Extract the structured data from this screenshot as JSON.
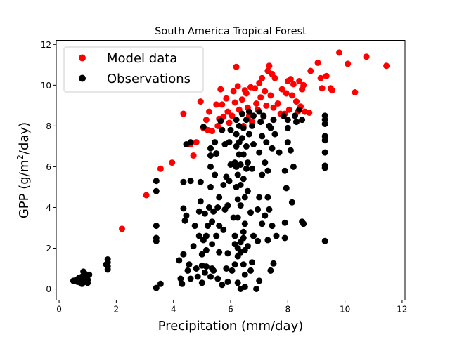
{
  "chart_data": {
    "type": "scatter",
    "title": "South America Tropical Forest",
    "xlabel": "Precipitation (mm/day)",
    "ylabel_main": "GPP (g/m",
    "ylabel_sup": "2",
    "ylabel_tail": "/day)",
    "xlim": [
      -0.1,
      12.1
    ],
    "ylim": [
      -0.55,
      12.2
    ],
    "xticks": [
      0,
      2,
      4,
      6,
      8,
      10,
      12
    ],
    "yticks": [
      0,
      2,
      4,
      6,
      8,
      10,
      12
    ],
    "legend_position": "top-left",
    "series": [
      {
        "name": "Model data",
        "color": "#ff0000",
        "points": [
          [
            2.2,
            2.95
          ],
          [
            3.05,
            4.6
          ],
          [
            3.55,
            5.9
          ],
          [
            3.95,
            6.2
          ],
          [
            4.35,
            8.6
          ],
          [
            4.6,
            7.1
          ],
          [
            4.7,
            6.55
          ],
          [
            4.8,
            7.2
          ],
          [
            4.95,
            9.2
          ],
          [
            5.05,
            7.9
          ],
          [
            5.15,
            8.3
          ],
          [
            5.2,
            7.8
          ],
          [
            5.25,
            8.7
          ],
          [
            5.35,
            7.75
          ],
          [
            5.5,
            9.05
          ],
          [
            5.55,
            8.0
          ],
          [
            5.6,
            8.35
          ],
          [
            5.65,
            9.8
          ],
          [
            5.7,
            9.05
          ],
          [
            5.75,
            8.45
          ],
          [
            5.85,
            9.35
          ],
          [
            5.9,
            8.7
          ],
          [
            5.95,
            8.15
          ],
          [
            6.05,
            8.5
          ],
          [
            6.1,
            9.7
          ],
          [
            6.15,
            9.15
          ],
          [
            6.2,
            10.9
          ],
          [
            6.25,
            9.95
          ],
          [
            6.3,
            8.8
          ],
          [
            6.4,
            9.3
          ],
          [
            6.45,
            8.0
          ],
          [
            6.5,
            9.75
          ],
          [
            6.55,
            9.6
          ],
          [
            6.6,
            8.9
          ],
          [
            6.65,
            8.5
          ],
          [
            6.7,
            9.9
          ],
          [
            6.75,
            8.2
          ],
          [
            6.85,
            9.85
          ],
          [
            6.9,
            9.1
          ],
          [
            6.95,
            8.8
          ],
          [
            7.0,
            10.1
          ],
          [
            7.05,
            9.4
          ],
          [
            7.1,
            10.35
          ],
          [
            7.15,
            8.45
          ],
          [
            7.2,
            9.7
          ],
          [
            7.25,
            9.0
          ],
          [
            7.3,
            10.7
          ],
          [
            7.35,
            10.95
          ],
          [
            7.4,
            9.5
          ],
          [
            7.45,
            10.55
          ],
          [
            7.5,
            8.9
          ],
          [
            7.55,
            10.35
          ],
          [
            7.65,
            9.1
          ],
          [
            7.75,
            8.6
          ],
          [
            7.8,
            9.8
          ],
          [
            7.9,
            8.6
          ],
          [
            7.95,
            9.6
          ],
          [
            8.0,
            10.2
          ],
          [
            8.05,
            8.8
          ],
          [
            8.1,
            10.3
          ],
          [
            8.15,
            9.5
          ],
          [
            8.2,
            10.05
          ],
          [
            8.3,
            9.2
          ],
          [
            8.35,
            8.7
          ],
          [
            8.4,
            10.2
          ],
          [
            8.45,
            8.95
          ],
          [
            8.5,
            9.8
          ],
          [
            8.55,
            10.0
          ],
          [
            8.6,
            8.7
          ],
          [
            8.75,
            8.65
          ],
          [
            8.8,
            10.7
          ],
          [
            9.05,
            11.1
          ],
          [
            9.15,
            10.35
          ],
          [
            9.2,
            9.85
          ],
          [
            9.35,
            10.45
          ],
          [
            9.5,
            9.85
          ],
          [
            9.55,
            9.75
          ],
          [
            9.8,
            11.6
          ],
          [
            10.1,
            11.05
          ],
          [
            10.35,
            9.65
          ],
          [
            10.75,
            11.4
          ],
          [
            11.45,
            10.95
          ]
        ]
      },
      {
        "name": "Observations",
        "color": "#000000",
        "points": [
          [
            0.5,
            0.4
          ],
          [
            0.6,
            0.45
          ],
          [
            0.65,
            0.35
          ],
          [
            0.7,
            0.55
          ],
          [
            0.75,
            0.3
          ],
          [
            0.8,
            0.6
          ],
          [
            0.8,
            0.25
          ],
          [
            0.85,
            0.5
          ],
          [
            0.9,
            0.35
          ],
          [
            0.9,
            0.75
          ],
          [
            0.95,
            0.6
          ],
          [
            1.0,
            0.45
          ],
          [
            1.0,
            0.3
          ],
          [
            1.05,
            0.7
          ],
          [
            0.85,
            0.85
          ],
          [
            1.7,
            0.95
          ],
          [
            1.7,
            1.1
          ],
          [
            1.7,
            1.3
          ],
          [
            1.7,
            1.45
          ],
          [
            1.65,
            1.2
          ],
          [
            3.4,
            0.05
          ],
          [
            3.4,
            2.35
          ],
          [
            3.4,
            2.5
          ],
          [
            3.4,
            3.1
          ],
          [
            3.4,
            4.8
          ],
          [
            3.4,
            5.3
          ],
          [
            3.55,
            0.25
          ],
          [
            4.2,
            1.4
          ],
          [
            4.25,
            0.5
          ],
          [
            4.3,
            0.25
          ],
          [
            4.35,
            1.7
          ],
          [
            4.35,
            3.95
          ],
          [
            4.35,
            5.25
          ],
          [
            4.4,
            3.35
          ],
          [
            4.45,
            3.6
          ],
          [
            4.45,
            7.1
          ],
          [
            4.5,
            0.9
          ],
          [
            4.55,
            1.2
          ],
          [
            4.6,
            0.5
          ],
          [
            4.6,
            5.3
          ],
          [
            4.6,
            7.2
          ],
          [
            4.7,
            2.1
          ],
          [
            4.75,
            3.1
          ],
          [
            4.8,
            1.0
          ],
          [
            4.85,
            0.6
          ],
          [
            4.9,
            2.6
          ],
          [
            4.9,
            3.8
          ],
          [
            4.95,
            4.3
          ],
          [
            4.95,
            5.25
          ],
          [
            5.0,
            0.3
          ],
          [
            5.0,
            1.15
          ],
          [
            5.0,
            1.7
          ],
          [
            5.05,
            2.4
          ],
          [
            5.05,
            7.95
          ],
          [
            5.1,
            0.8
          ],
          [
            5.1,
            3.7
          ],
          [
            5.15,
            1.1
          ],
          [
            5.15,
            1.9
          ],
          [
            5.15,
            2.6
          ],
          [
            5.2,
            3.1
          ],
          [
            5.25,
            4.0
          ],
          [
            5.3,
            0.6
          ],
          [
            5.3,
            6.0
          ],
          [
            5.3,
            6.55
          ],
          [
            5.3,
            5.0
          ],
          [
            5.3,
            6.9
          ],
          [
            5.35,
            1.0
          ],
          [
            5.35,
            2.2
          ],
          [
            5.35,
            3.3
          ],
          [
            5.4,
            0.9
          ],
          [
            5.4,
            3.8
          ],
          [
            5.45,
            5.6
          ],
          [
            5.45,
            7.2
          ],
          [
            5.5,
            6.65
          ],
          [
            5.5,
            2.6
          ],
          [
            5.55,
            4.0
          ],
          [
            5.55,
            0.5
          ],
          [
            5.6,
            1.8
          ],
          [
            5.6,
            3.1
          ],
          [
            5.6,
            4.5
          ],
          [
            5.65,
            8.25
          ],
          [
            5.7,
            7.8
          ],
          [
            5.7,
            0.2
          ],
          [
            5.75,
            2.9
          ],
          [
            5.75,
            5.1
          ],
          [
            5.8,
            7.1
          ],
          [
            5.8,
            3.9
          ],
          [
            5.85,
            1.0
          ],
          [
            5.85,
            5.5
          ],
          [
            5.9,
            0.35
          ],
          [
            5.9,
            1.75
          ],
          [
            5.9,
            4.1
          ],
          [
            5.95,
            5.3
          ],
          [
            5.95,
            7.2
          ],
          [
            6.0,
            7.8
          ],
          [
            6.0,
            6.1
          ],
          [
            6.05,
            0.9
          ],
          [
            6.1,
            3.5
          ],
          [
            6.15,
            1.2
          ],
          [
            6.15,
            2.2
          ],
          [
            6.15,
            2.6
          ],
          [
            6.15,
            6.2
          ],
          [
            6.2,
            5.0
          ],
          [
            6.2,
            6.0
          ],
          [
            6.2,
            7.0
          ],
          [
            6.2,
            7.6
          ],
          [
            6.2,
            8.3
          ],
          [
            6.25,
            0.3
          ],
          [
            6.25,
            1.6
          ],
          [
            6.25,
            2.0
          ],
          [
            6.25,
            3.5
          ],
          [
            6.25,
            4.4
          ],
          [
            6.25,
            5.6
          ],
          [
            6.3,
            6.6
          ],
          [
            6.3,
            7.2
          ],
          [
            6.3,
            8.0
          ],
          [
            6.35,
            0.0
          ],
          [
            6.35,
            1.8
          ],
          [
            6.35,
            2.3
          ],
          [
            6.35,
            4.1
          ],
          [
            6.35,
            5.1
          ],
          [
            6.35,
            6.1
          ],
          [
            6.4,
            7.4
          ],
          [
            6.4,
            8.6
          ],
          [
            6.45,
            1.2
          ],
          [
            6.45,
            2.5
          ],
          [
            6.45,
            2.8
          ],
          [
            6.45,
            5.4
          ],
          [
            6.45,
            6.6
          ],
          [
            6.45,
            7.9
          ],
          [
            6.5,
            0.1
          ],
          [
            6.5,
            0.7
          ],
          [
            6.5,
            1.9
          ],
          [
            6.5,
            3.2
          ],
          [
            6.5,
            4.5
          ],
          [
            6.55,
            5.9
          ],
          [
            6.55,
            7.0
          ],
          [
            6.55,
            8.3
          ],
          [
            6.6,
            2.1
          ],
          [
            6.6,
            4.8
          ],
          [
            6.6,
            6.2
          ],
          [
            6.65,
            7.6
          ],
          [
            6.65,
            8.7
          ],
          [
            6.7,
            0.9
          ],
          [
            6.7,
            3.75
          ],
          [
            6.75,
            1.3
          ],
          [
            6.75,
            5.9
          ],
          [
            6.75,
            8.0
          ],
          [
            6.8,
            2.6
          ],
          [
            6.8,
            7.1
          ],
          [
            6.8,
            8.5
          ],
          [
            6.9,
            0.0
          ],
          [
            6.95,
            2.35
          ],
          [
            6.95,
            3.9
          ],
          [
            7.0,
            0.4
          ],
          [
            7.0,
            4.5
          ],
          [
            7.0,
            6.7
          ],
          [
            7.0,
            8.7
          ],
          [
            7.05,
            8.2
          ],
          [
            7.1,
            3.2
          ],
          [
            7.1,
            5.6
          ],
          [
            7.1,
            7.5
          ],
          [
            7.15,
            8.5
          ],
          [
            7.2,
            3.6
          ],
          [
            7.2,
            6.2
          ],
          [
            7.25,
            7.2
          ],
          [
            7.3,
            2.4
          ],
          [
            7.3,
            4.5
          ],
          [
            7.3,
            5.8
          ],
          [
            7.35,
            3.9
          ],
          [
            7.35,
            8.0
          ],
          [
            7.4,
            0.9
          ],
          [
            7.4,
            7.9
          ],
          [
            7.45,
            3.1
          ],
          [
            7.45,
            6.9
          ],
          [
            7.5,
            1.25
          ],
          [
            7.5,
            8.3
          ],
          [
            7.55,
            7.6
          ],
          [
            7.6,
            2.6
          ],
          [
            7.7,
            6.7
          ],
          [
            7.85,
            8.5
          ],
          [
            7.9,
            2.5
          ],
          [
            7.9,
            3.25
          ],
          [
            7.9,
            5.8
          ],
          [
            7.95,
            4.95
          ],
          [
            8.0,
            7.2
          ],
          [
            8.0,
            7.9
          ],
          [
            8.0,
            8.3
          ],
          [
            8.1,
            6.8
          ],
          [
            8.15,
            4.25
          ],
          [
            8.2,
            6.0
          ],
          [
            8.25,
            8.5
          ],
          [
            8.3,
            8.2
          ],
          [
            8.4,
            8.8
          ],
          [
            8.5,
            3.3
          ],
          [
            8.55,
            3.2
          ],
          [
            8.5,
            8.3
          ],
          [
            9.3,
            2.35
          ],
          [
            9.3,
            5.95
          ],
          [
            9.3,
            6.05
          ],
          [
            9.3,
            6.7
          ],
          [
            9.3,
            7.3
          ],
          [
            9.3,
            7.5
          ],
          [
            9.3,
            8.1
          ],
          [
            9.3,
            8.3
          ],
          [
            9.3,
            8.5
          ]
        ]
      }
    ]
  }
}
